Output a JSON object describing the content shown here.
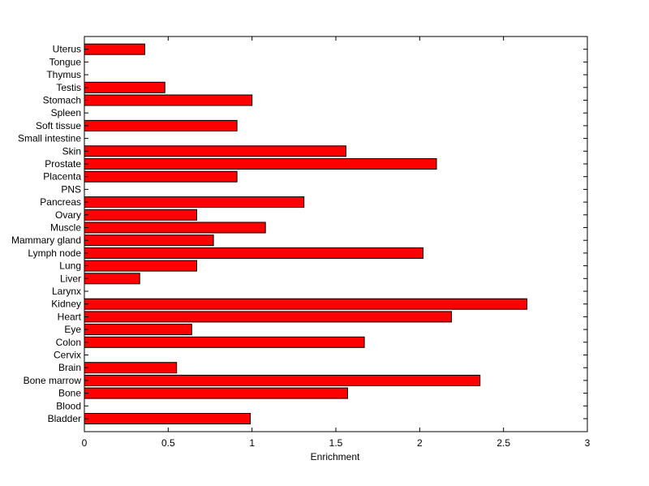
{
  "chart_data": {
    "type": "bar",
    "orientation": "horizontal",
    "categories": [
      "Bladder",
      "Blood",
      "Bone",
      "Bone marrow",
      "Brain",
      "Cervix",
      "Colon",
      "Eye",
      "Heart",
      "Kidney",
      "Larynx",
      "Liver",
      "Lung",
      "Lymph node",
      "Mammary gland",
      "Muscle",
      "Ovary",
      "Pancreas",
      "PNS",
      "Placenta",
      "Prostate",
      "Skin",
      "Small intestine",
      "Soft tissue",
      "Spleen",
      "Stomach",
      "Testis",
      "Thymus",
      "Tongue",
      "Uterus"
    ],
    "values": [
      0.99,
      0,
      1.57,
      2.36,
      0.55,
      0,
      1.67,
      0.64,
      2.19,
      2.64,
      0,
      0.33,
      0.67,
      2.02,
      0.77,
      1.08,
      0.67,
      1.31,
      0,
      0.91,
      2.1,
      1.56,
      0,
      0.91,
      0,
      1.0,
      0.48,
      0,
      0,
      0.36
    ],
    "xlabel": "Enrichment",
    "ylabel": "",
    "title": "",
    "xlim": [
      0,
      3
    ],
    "xticks": [
      "0",
      "0.5",
      "1",
      "1.5",
      "2",
      "2.5",
      "3"
    ],
    "bar_color": "#ff0000",
    "bar_edge_color": "#000000",
    "grid": false
  }
}
